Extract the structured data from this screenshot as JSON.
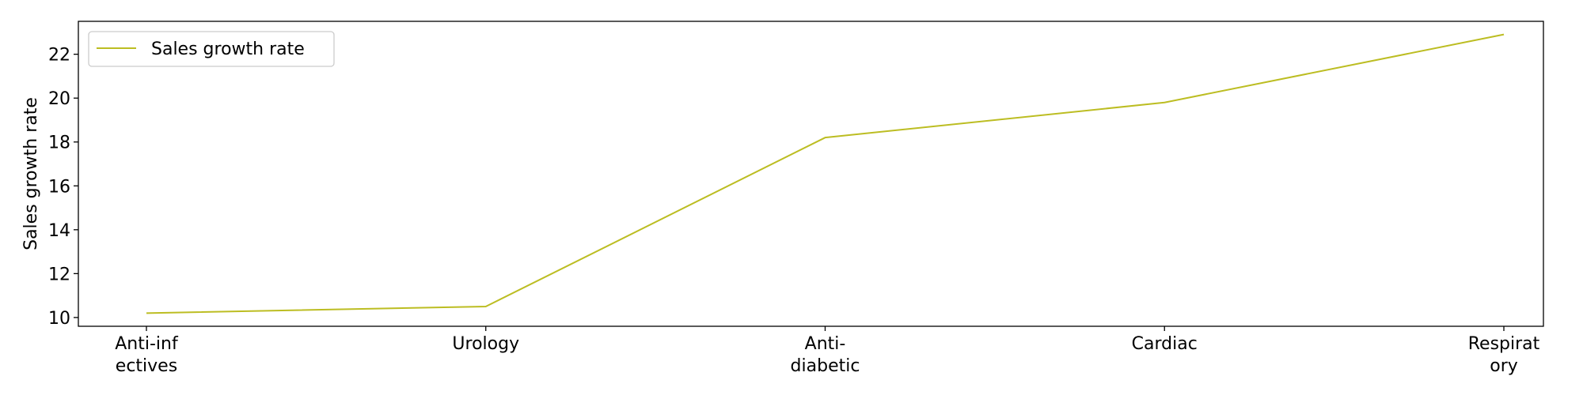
{
  "chart_data": {
    "type": "line",
    "categories": [
      [
        "Anti-inf",
        "ectives"
      ],
      [
        "Urology"
      ],
      [
        "Anti-",
        "diabetic"
      ],
      [
        "Cardiac"
      ],
      [
        "Respirat",
        "ory"
      ]
    ],
    "series": [
      {
        "name": "Sales growth rate",
        "values": [
          10.2,
          10.5,
          18.2,
          19.8,
          22.9
        ],
        "color": "#bcbd22"
      }
    ],
    "ylabel": "Sales growth rate",
    "xlabel": "",
    "ylim": [
      9.6,
      23.5
    ],
    "yticks": [
      10,
      12,
      14,
      16,
      18,
      20,
      22
    ],
    "grid": false,
    "legend_position": "top-left"
  }
}
